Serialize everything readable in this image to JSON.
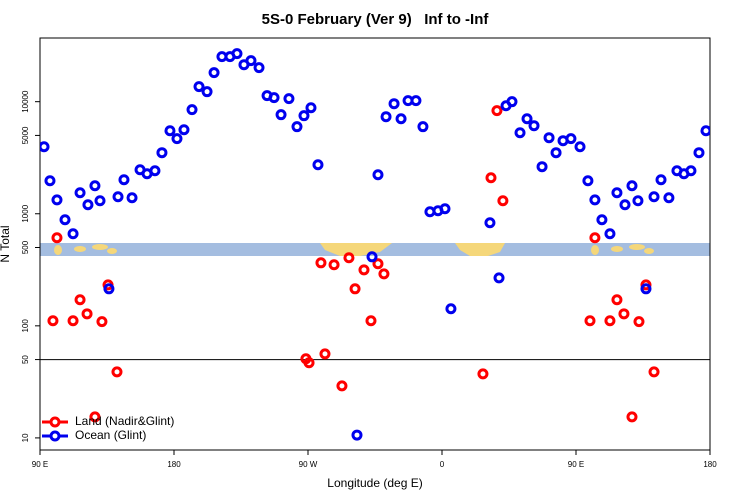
{
  "chart_data": {
    "type": "scatter",
    "title": "5S-0 February (Ver 9)   Inf to -Inf",
    "xlabel": "Longitude (deg E)",
    "ylabel": "N Total",
    "xlim": [
      90,
      540
    ],
    "xticks": [
      {
        "value": 90,
        "label": "90 E"
      },
      180,
      {
        "value": 270,
        "label": "90 W"
      },
      {
        "value": 360,
        "label": "0"
      },
      {
        "value": 450,
        "label": "90 E"
      },
      {
        "value": 540,
        "label": "180"
      }
    ],
    "ylim": [
      7.8,
      37000
    ],
    "yscale": "log",
    "yticks": [
      10,
      50,
      100,
      500,
      1000,
      5000,
      10000
    ],
    "reference_line": 50,
    "legend": "bottom-left",
    "series": [
      {
        "name": "Land (Nadir&Glint)",
        "color": "#ff0000",
        "x": [
          101.4,
          98.7,
          112.2,
          116.9,
          121.6,
          126.9,
          131.6,
          135.7,
          141.7,
          268.6,
          270.7,
          278.7,
          281.4,
          287.5,
          292.8,
          297.5,
          301.6,
          307.6,
          312.3,
          317.0,
          321.0,
          387.5,
          392.9,
          396.9,
          400.9,
          462.7,
          459.4,
          472.8,
          477.5,
          482.2,
          487.6,
          492.3,
          497.0,
          502.4
        ],
        "y": [
          611,
          111,
          111,
          171,
          128,
          15.4,
          109,
          232,
          38.8,
          50.8,
          46.8,
          365,
          56.2,
          351,
          29.1,
          405,
          214,
          316,
          111,
          358,
          291,
          37.3,
          2096,
          8318,
          1306,
          611,
          111,
          111,
          171,
          128,
          15.4,
          109,
          232,
          38.8
        ]
      },
      {
        "name": "Ocean (Glint)",
        "color": "#0000ee",
        "x": [
          92.7,
          96.7,
          101.4,
          106.8,
          112.2,
          116.9,
          122.2,
          126.9,
          130.3,
          136.3,
          142.4,
          146.4,
          151.8,
          157.2,
          161.9,
          167.2,
          171.9,
          177.3,
          182.0,
          186.7,
          192.1,
          196.8,
          202.2,
          206.9,
          212.2,
          217.6,
          222.3,
          227.0,
          231.7,
          237.1,
          242.5,
          247.2,
          251.9,
          257.2,
          262.6,
          267.3,
          272.0,
          276.7,
          302.9,
          313.0,
          317.0,
          322.4,
          327.8,
          332.5,
          337.2,
          342.5,
          347.2,
          351.9,
          357.3,
          362.0,
          366.0,
          392.2,
          398.3,
          403.0,
          407.0,
          412.4,
          417.1,
          421.8,
          427.2,
          431.9,
          436.6,
          441.3,
          446.6,
          452.7,
          458.0,
          462.7,
          467.4,
          472.8,
          477.5,
          482.9,
          487.6,
          491.6,
          497.0,
          502.4,
          507.1,
          512.4,
          517.8,
          522.5,
          527.2,
          532.6,
          537.3
        ],
        "y": [
          3960,
          1970,
          1330,
          884,
          663,
          1540,
          1203,
          1778,
          1306,
          214,
          1419,
          2013,
          1389,
          2472,
          2275,
          2421,
          3506,
          5508,
          4677,
          5623,
          8486,
          13614,
          12280,
          18155,
          25235,
          25235,
          26850,
          21380,
          23230,
          20130,
          11320,
          10860,
          7656,
          10640,
          5984,
          7500,
          8836,
          2738,
          10.6,
          413,
          2230,
          7345,
          9594,
          7047,
          10210,
          10210,
          5984,
          1042,
          1064,
          1109,
          142,
          831,
          268,
          9204,
          10000,
          5287,
          7047,
          6105,
          2630,
          4772,
          3506,
          4487,
          4677,
          3963,
          1970,
          1330,
          884,
          663,
          1540,
          1203,
          1778,
          1306,
          214,
          1419,
          2013,
          1389,
          2421,
          2275,
          2421,
          3506,
          5508
        ]
      }
    ]
  }
}
